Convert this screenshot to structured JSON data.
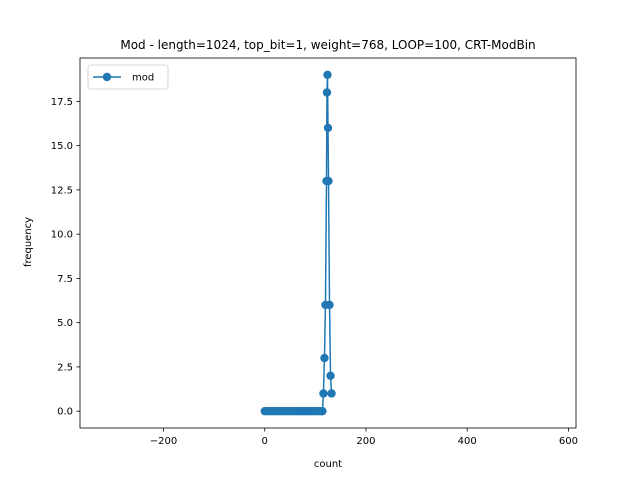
{
  "chart_data": {
    "type": "line",
    "title": "Mod - length=1024, top_bit=1, weight=768, LOOP=100, CRT-ModBin",
    "xlabel": "count",
    "ylabel": "frequency",
    "xlim": [
      -365,
      615
    ],
    "ylim": [
      -0.95,
      19.95
    ],
    "xticks": [
      -200,
      0,
      200,
      400,
      600
    ],
    "xtick_labels": [
      "−200",
      "0",
      "200",
      "400",
      "600"
    ],
    "yticks": [
      0.0,
      2.5,
      5.0,
      7.5,
      10.0,
      12.5,
      15.0,
      17.5
    ],
    "ytick_labels": [
      "0.0",
      "2.5",
      "5.0",
      "7.5",
      "10.0",
      "12.5",
      "15.0",
      "17.5"
    ],
    "grid": false,
    "legend": {
      "position": "upper-left",
      "entries": [
        "mod"
      ]
    },
    "colors": {
      "series": "#1f77b4"
    },
    "series": [
      {
        "name": "mod",
        "marker": "circle",
        "x": [
          0,
          4,
          8,
          12,
          16,
          20,
          24,
          28,
          32,
          36,
          40,
          44,
          48,
          52,
          56,
          60,
          64,
          68,
          72,
          76,
          80,
          84,
          88,
          92,
          96,
          100,
          104,
          108,
          112,
          114,
          116,
          118,
          120,
          122,
          123,
          124,
          125,
          126,
          128,
          130,
          132
        ],
        "y": [
          0,
          0,
          0,
          0,
          0,
          0,
          0,
          0,
          0,
          0,
          0,
          0,
          0,
          0,
          0,
          0,
          0,
          0,
          0,
          0,
          0,
          0,
          0,
          0,
          0,
          0,
          0,
          0,
          0,
          0,
          1,
          3,
          6,
          13,
          18,
          19,
          16,
          13,
          6,
          2,
          1
        ]
      }
    ]
  }
}
